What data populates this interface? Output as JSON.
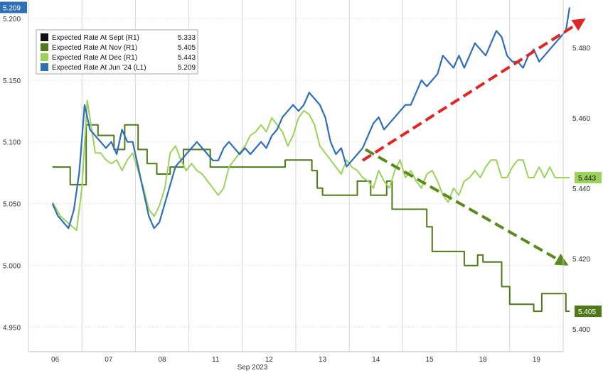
{
  "chart_data": {
    "type": "line",
    "title": "",
    "xlabel": "Sep 2023",
    "ylabel_left": "",
    "ylabel_right": "",
    "grid": true,
    "legend_position": "top-left",
    "x_categories": [
      "06",
      "07",
      "08",
      "11",
      "12",
      "13",
      "14",
      "15",
      "18",
      "19"
    ],
    "y_left": {
      "range": [
        4.93,
        5.215
      ],
      "ticks": [
        "5.200",
        "5.150",
        "5.100",
        "5.050",
        "5.000",
        "4.950"
      ]
    },
    "y_right": {
      "range": [
        5.3935,
        5.4935
      ],
      "ticks": [
        "5.480",
        "5.460",
        "5.440",
        "5.420",
        "5.400"
      ]
    },
    "legend": {
      "rows": [
        {
          "label": "Expected Rate At Sept (R1)",
          "value": "5.333",
          "color": "#111111"
        },
        {
          "label": "Expected Rate At Nov (R1)",
          "value": "5.405",
          "color": "#4f7a19"
        },
        {
          "label": "Expected Rate At Dec (R1)",
          "value": "5.443",
          "color": "#9bd35a"
        },
        {
          "label": "Expected Rate At Jun '24 (L1)",
          "value": "5.209",
          "color": "#2f6fb5"
        }
      ]
    },
    "badges": {
      "left": {
        "text": "5.209",
        "value": 5.209,
        "axis": "left",
        "color": "#2f6fb5",
        "text_color": "#ffffff"
      },
      "right_dec": {
        "text": "5.443",
        "value": 5.443,
        "axis": "right",
        "color": "#9bd35a",
        "text_color": "#111111"
      },
      "right_nov": {
        "text": "5.405",
        "value": 5.405,
        "axis": "right",
        "color": "#4f7a19",
        "text_color": "#ffffff"
      }
    },
    "arrows": [
      {
        "name": "uptrend-arrow",
        "color": "#e02525",
        "from": [
          5.75,
          5.085
        ],
        "to": [
          9.92,
          5.2
        ],
        "axis": "left"
      },
      {
        "name": "downtrend-arrow",
        "color": "#5a8a1e",
        "from": [
          5.8,
          5.451
        ],
        "to": [
          9.6,
          5.418
        ],
        "axis": "right"
      }
    ],
    "series": [
      {
        "name": "Expected Rate At Jun '24 (L1)",
        "axis": "left",
        "color": "#2f6fb5",
        "x": [
          -0.05,
          0.05,
          0.15,
          0.25,
          0.35,
          0.45,
          0.55,
          0.65,
          0.75,
          0.85,
          0.95,
          1.05,
          1.15,
          1.25,
          1.35,
          1.45,
          1.55,
          1.65,
          1.75,
          1.85,
          1.95,
          2.05,
          2.15,
          2.25,
          2.35,
          2.45,
          2.55,
          2.65,
          2.75,
          2.85,
          2.95,
          3.05,
          3.15,
          3.25,
          3.35,
          3.45,
          3.55,
          3.65,
          3.75,
          3.85,
          3.95,
          4.05,
          4.15,
          4.25,
          4.35,
          4.45,
          4.55,
          4.65,
          4.75,
          4.85,
          4.95,
          5.05,
          5.15,
          5.25,
          5.35,
          5.45,
          5.55,
          5.65,
          5.75,
          5.85,
          5.95,
          6.05,
          6.15,
          6.25,
          6.35,
          6.45,
          6.55,
          6.65,
          6.75,
          6.85,
          6.95,
          7.05,
          7.15,
          7.25,
          7.35,
          7.45,
          7.55,
          7.65,
          7.75,
          7.85,
          7.95,
          8.05,
          8.15,
          8.25,
          8.35,
          8.45,
          8.55,
          8.65,
          8.75,
          8.85,
          8.95,
          9.05,
          9.15,
          9.25,
          9.35,
          9.45,
          9.55,
          9.62
        ],
        "y": [
          5.05,
          5.04,
          5.035,
          5.03,
          5.045,
          5.075,
          5.13,
          5.11,
          5.105,
          5.1,
          5.095,
          5.1,
          5.09,
          5.11,
          5.1,
          5.1,
          5.08,
          5.06,
          5.04,
          5.03,
          5.035,
          5.05,
          5.065,
          5.08,
          5.085,
          5.09,
          5.095,
          5.1,
          5.095,
          5.09,
          5.085,
          5.085,
          5.095,
          5.1,
          5.095,
          5.09,
          5.095,
          5.09,
          5.095,
          5.1,
          5.095,
          5.105,
          5.11,
          5.12,
          5.125,
          5.13,
          5.125,
          5.13,
          5.14,
          5.135,
          5.13,
          5.12,
          5.1,
          5.09,
          5.095,
          5.08,
          5.085,
          5.09,
          5.095,
          5.105,
          5.115,
          5.12,
          5.11,
          5.115,
          5.12,
          5.125,
          5.13,
          5.13,
          5.14,
          5.15,
          5.145,
          5.15,
          5.155,
          5.17,
          5.165,
          5.16,
          5.17,
          5.16,
          5.17,
          5.18,
          5.175,
          5.17,
          5.18,
          5.19,
          5.185,
          5.17,
          5.165,
          5.165,
          5.16,
          5.17,
          5.175,
          5.165,
          5.17,
          5.175,
          5.18,
          5.185,
          5.19,
          5.209
        ]
      },
      {
        "name": "Expected Rate At Dec (R1)",
        "axis": "right",
        "color": "#9bd35a",
        "x": [
          -0.05,
          0.1,
          0.25,
          0.4,
          0.5,
          0.6,
          0.75,
          0.85,
          0.95,
          1.05,
          1.15,
          1.25,
          1.35,
          1.45,
          1.55,
          1.65,
          1.75,
          1.85,
          1.95,
          2.05,
          2.15,
          2.25,
          2.35,
          2.45,
          2.55,
          2.65,
          2.75,
          2.85,
          2.95,
          3.05,
          3.15,
          3.25,
          3.35,
          3.45,
          3.55,
          3.65,
          3.75,
          3.85,
          3.95,
          4.05,
          4.15,
          4.25,
          4.35,
          4.45,
          4.55,
          4.65,
          4.75,
          4.85,
          4.95,
          5.05,
          5.15,
          5.25,
          5.35,
          5.45,
          5.55,
          5.65,
          5.75,
          5.85,
          5.95,
          6.05,
          6.15,
          6.25,
          6.35,
          6.45,
          6.55,
          6.65,
          6.75,
          6.85,
          6.95,
          7.05,
          7.15,
          7.25,
          7.35,
          7.45,
          7.55,
          7.65,
          7.75,
          7.85,
          7.95,
          8.05,
          8.15,
          8.25,
          8.35,
          8.45,
          8.55,
          8.65,
          8.75,
          8.85,
          8.95,
          9.05,
          9.15,
          9.25,
          9.35,
          9.45,
          9.55,
          9.62
        ],
        "y": [
          5.436,
          5.432,
          5.43,
          5.428,
          5.44,
          5.465,
          5.45,
          5.45,
          5.448,
          5.447,
          5.448,
          5.445,
          5.448,
          5.45,
          5.445,
          5.44,
          5.434,
          5.432,
          5.435,
          5.44,
          5.45,
          5.452,
          5.448,
          5.445,
          5.447,
          5.445,
          5.444,
          5.442,
          5.44,
          5.438,
          5.44,
          5.446,
          5.448,
          5.45,
          5.452,
          5.455,
          5.456,
          5.458,
          5.456,
          5.46,
          5.458,
          5.456,
          5.452,
          5.455,
          5.46,
          5.462,
          5.461,
          5.458,
          5.452,
          5.45,
          5.448,
          5.446,
          5.444,
          5.448,
          5.446,
          5.445,
          5.443,
          5.442,
          5.44,
          5.445,
          5.442,
          5.44,
          5.445,
          5.448,
          5.443,
          5.445,
          5.442,
          5.44,
          5.444,
          5.445,
          5.442,
          5.438,
          5.436,
          5.44,
          5.438,
          5.442,
          5.443,
          5.445,
          5.443,
          5.446,
          5.448,
          5.448,
          5.443,
          5.443,
          5.446,
          5.448,
          5.448,
          5.443,
          5.443,
          5.446,
          5.443,
          5.446,
          5.443,
          5.443,
          5.443,
          5.443
        ]
      },
      {
        "name": "Expected Rate At Nov (R1)",
        "axis": "right",
        "color": "#4f7a19",
        "x": [
          -0.05,
          0.0,
          0.28,
          0.55,
          0.58,
          0.8,
          1.1,
          1.3,
          1.55,
          1.72,
          1.9,
          2.15,
          2.4,
          2.6,
          2.9,
          3.3,
          3.6,
          3.9,
          4.15,
          4.3,
          4.6,
          4.8,
          4.9,
          5.0,
          5.2,
          5.4,
          5.5,
          5.65,
          5.9,
          6.1,
          6.2,
          6.3,
          6.5,
          6.8,
          6.95,
          7.05,
          7.3,
          7.5,
          7.65,
          7.8,
          7.9,
          8.0,
          8.2,
          8.35,
          8.5,
          8.7,
          8.95,
          9.1,
          9.2,
          9.35,
          9.55,
          9.62
        ],
        "y": [
          5.446,
          5.446,
          5.441,
          5.441,
          5.458,
          5.455,
          5.451,
          5.458,
          5.451,
          5.447,
          5.444,
          5.446,
          5.451,
          5.451,
          5.446,
          5.446,
          5.446,
          5.446,
          5.446,
          5.448,
          5.448,
          5.445,
          5.44,
          5.438,
          5.438,
          5.438,
          5.438,
          5.442,
          5.438,
          5.438,
          5.442,
          5.434,
          5.434,
          5.434,
          5.429,
          5.422,
          5.422,
          5.422,
          5.418,
          5.418,
          5.421,
          5.419,
          5.419,
          5.412,
          5.407,
          5.407,
          5.405,
          5.41,
          5.41,
          5.41,
          5.405,
          5.405
        ]
      }
    ]
  }
}
